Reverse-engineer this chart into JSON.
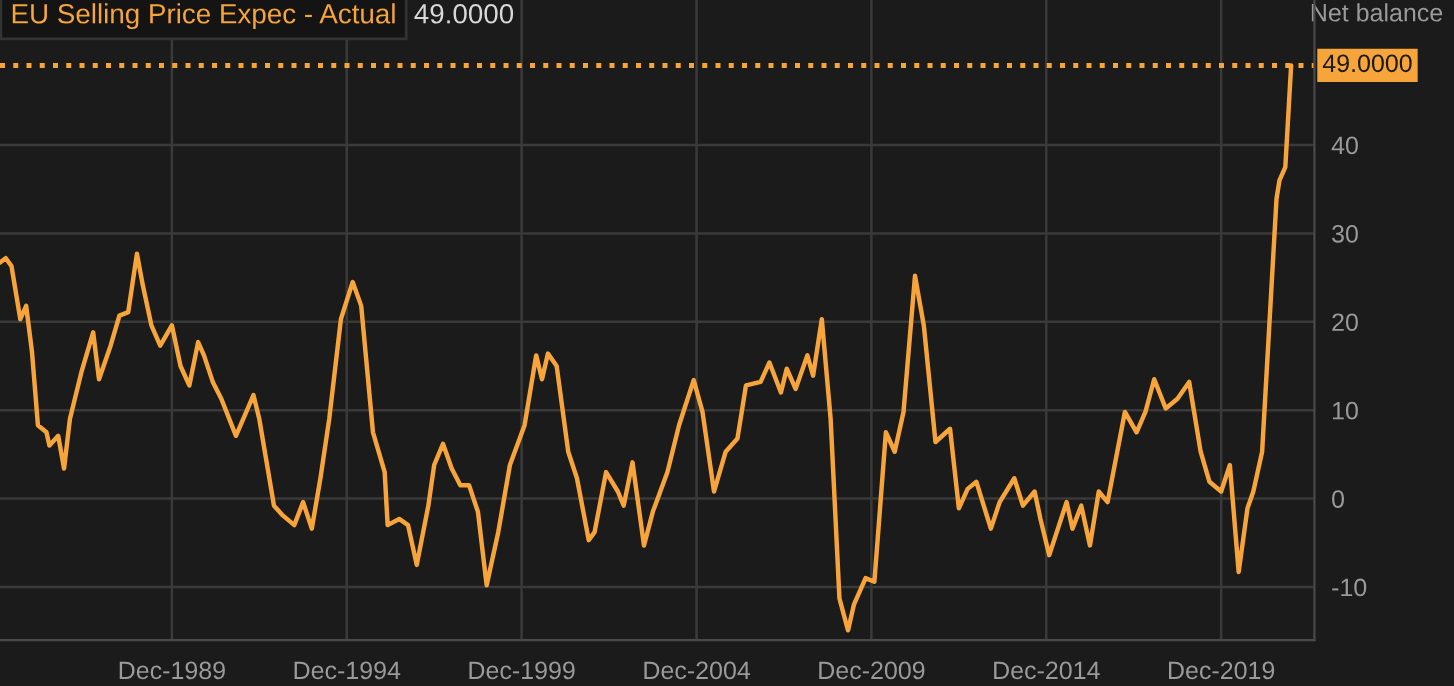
{
  "chart_data": {
    "type": "line",
    "title": "EU Selling Price Expec - Actual",
    "ylabel": "Net balance",
    "annotations": [
      "49.0000"
    ],
    "x": [
      "1985-01",
      "1985-03",
      "1985-05",
      "1985-08",
      "1985-10",
      "1985-12",
      "1986-02",
      "1986-05",
      "1986-06",
      "1986-09",
      "1986-11",
      "1987-01",
      "1987-05",
      "1987-09",
      "1987-11",
      "1988-03",
      "1988-06",
      "1988-09",
      "1988-12",
      "1989-02",
      "1989-05",
      "1989-08",
      "1989-12",
      "1990-03",
      "1990-06",
      "1990-09",
      "1990-11",
      "1991-02",
      "1991-05",
      "1991-10",
      "1992-04",
      "1992-06",
      "1992-11",
      "1993-02",
      "1993-06",
      "1993-09",
      "1993-12",
      "1994-03",
      "1994-06",
      "1994-10",
      "1995-02",
      "1995-05",
      "1995-09",
      "1996-01",
      "1996-02",
      "1996-06",
      "1996-09",
      "1996-12",
      "1997-04",
      "1997-06",
      "1997-09",
      "1997-12",
      "1998-03",
      "1998-06",
      "1998-09",
      "1998-12",
      "1999-04",
      "1999-08",
      "2000-01",
      "2000-05",
      "2000-07",
      "2000-09",
      "2000-12",
      "2001-04",
      "2001-07",
      "2001-11",
      "2002-01",
      "2002-05",
      "2002-09",
      "2002-11",
      "2003-02",
      "2003-06",
      "2003-09",
      "2004-02",
      "2004-06",
      "2004-11",
      "2005-02",
      "2005-06",
      "2005-10",
      "2006-02",
      "2006-05",
      "2006-10",
      "2007-01",
      "2007-05",
      "2007-07",
      "2007-10",
      "2008-02",
      "2008-04",
      "2008-07",
      "2008-10",
      "2009-01",
      "2009-04",
      "2009-06",
      "2009-10",
      "2010-01",
      "2010-05",
      "2010-08",
      "2010-11",
      "2011-03",
      "2011-06",
      "2011-10",
      "2012-03",
      "2012-06",
      "2012-09",
      "2012-12",
      "2013-05",
      "2013-08",
      "2014-01",
      "2014-04",
      "2014-08",
      "2014-10",
      "2015-01",
      "2015-07",
      "2015-09",
      "2015-12",
      "2016-03",
      "2016-06",
      "2016-09",
      "2017-03",
      "2017-07",
      "2017-10",
      "2018-01",
      "2018-05",
      "2018-09",
      "2019-01",
      "2019-05",
      "2019-08",
      "2019-12",
      "2020-03",
      "2020-06",
      "2020-09",
      "2020-11",
      "2021-02",
      "2021-07",
      "2021-08",
      "2021-10",
      "2021-12"
    ],
    "series": [
      {
        "color": "#f7a53a",
        "values": [
          26.7,
          27.2,
          26.3,
          20.3,
          21.8,
          16.6,
          8.3,
          7.5,
          6.0,
          7.1,
          3.4,
          9.0,
          14.3,
          18.8,
          13.5,
          17.3,
          20.7,
          21.1,
          27.7,
          24.1,
          19.6,
          17.3,
          19.6,
          15.0,
          12.8,
          17.7,
          16.2,
          13.2,
          11.3,
          7.1,
          11.7,
          9.0,
          -0.8,
          -1.9,
          -3.0,
          -0.4,
          -3.4,
          2.3,
          9.0,
          20.3,
          24.5,
          21.8,
          7.5,
          3.0,
          -3.0,
          -2.3,
          -3.0,
          -7.5,
          -0.8,
          3.8,
          6.2,
          3.4,
          1.5,
          1.5,
          -1.5,
          -9.8,
          -3.8,
          3.8,
          8.3,
          16.2,
          13.5,
          16.4,
          15.0,
          5.3,
          2.3,
          -4.7,
          -3.8,
          3.0,
          0.8,
          -0.8,
          4.1,
          -5.3,
          -1.5,
          3.0,
          8.3,
          13.4,
          9.8,
          0.8,
          5.3,
          6.8,
          12.8,
          13.2,
          15.4,
          12.0,
          14.7,
          12.4,
          16.2,
          13.9,
          20.3,
          9.0,
          -11.3,
          -14.9,
          -12.0,
          -9.0,
          -9.4,
          7.5,
          5.3,
          9.8,
          25.2,
          19.6,
          6.4,
          7.9,
          -1.1,
          1.1,
          1.9,
          -3.4,
          -0.4,
          2.3,
          -0.8,
          0.8,
          -2.3,
          -6.4,
          -0.4,
          -3.4,
          -0.8,
          -5.3,
          0.8,
          -0.4,
          9.8,
          7.5,
          9.8,
          13.5,
          10.2,
          11.3,
          13.2,
          5.3,
          1.9,
          0.8,
          3.8,
          -8.3,
          -1.1,
          0.8,
          5.3,
          33.9,
          36.0,
          37.5,
          49.0
        ]
      }
    ],
    "xlim": [
      "1985-01",
      "2022-08"
    ],
    "xticks": [
      {
        "value": "1989-12",
        "label": "Dec-1989"
      },
      {
        "value": "1994-12",
        "label": "Dec-1994"
      },
      {
        "value": "1999-12",
        "label": "Dec-1999"
      },
      {
        "value": "2004-12",
        "label": "Dec-2004"
      },
      {
        "value": "2009-12",
        "label": "Dec-2009"
      },
      {
        "value": "2014-12",
        "label": "Dec-2014"
      },
      {
        "value": "2019-12",
        "label": "Dec-2019"
      }
    ],
    "ylim": [
      -16,
      56.4
    ],
    "yticks": [
      -10,
      0,
      10,
      20,
      30,
      40
    ],
    "ref_lines": [
      {
        "axis": "y",
        "value": 49.0,
        "label": "49.0000",
        "color": "#f7a53a",
        "line_style": "dotted"
      }
    ],
    "grid": true,
    "legend": false,
    "line_style": "solid",
    "marker": "none"
  }
}
